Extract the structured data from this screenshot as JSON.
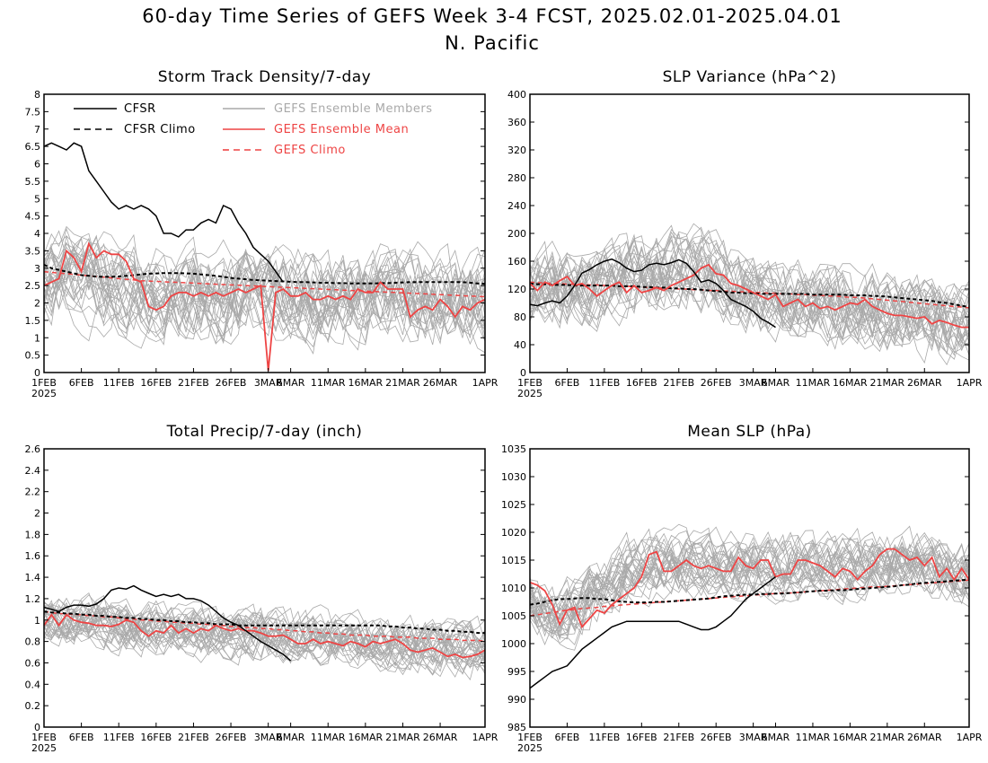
{
  "figure": {
    "title_line1": "60-day Time Series of GEFS Week 3-4 FCST, 2025.02.01-2025.04.01",
    "title_line2": "N. Pacific"
  },
  "colors": {
    "cfsr": "#000000",
    "members": "#a9a9a9",
    "gefs_mean": "#ee4444",
    "gefs_climo": "#ee4444"
  },
  "legend": {
    "cfsr": "CFSR",
    "cfsr_climo": "CFSR Climo",
    "members": "GEFS Ensemble Members",
    "gefs_mean": "GEFS Ensemble Mean",
    "gefs_climo": "GEFS Climo"
  },
  "x_tick_labels": [
    "1FEB",
    "6FEB",
    "11FEB",
    "16FEB",
    "21FEB",
    "26FEB",
    "3MAR",
    "6MAR",
    "11MAR",
    "16MAR",
    "21MAR",
    "26MAR",
    "1APR"
  ],
  "x_tick_days": [
    0,
    5,
    10,
    15,
    20,
    25,
    30,
    33,
    38,
    43,
    48,
    53,
    59
  ],
  "x_year_label": "2025",
  "chart_data": [
    {
      "type": "line",
      "title": "Storm Track Density/7-day",
      "x_domain": [
        0,
        59
      ],
      "ylim": [
        0,
        8
      ],
      "yticks": [
        "0",
        "0.5",
        "1",
        "1.5",
        "2",
        "2.5",
        "3",
        "3.5",
        "4",
        "4.5",
        "5",
        "5.5",
        "6",
        "6.5",
        "7",
        "7.5",
        "8"
      ],
      "ytick_values": [
        0,
        0.5,
        1,
        1.5,
        2,
        2.5,
        3,
        3.5,
        4,
        4.5,
        5,
        5.5,
        6,
        6.5,
        7,
        7.5,
        8
      ],
      "members_spread_note_free": true,
      "members_center": [
        2.5,
        2.6,
        2.7,
        2.9,
        2.8,
        2.7,
        2.6,
        2.6,
        2.5,
        2.5,
        2.4,
        2.4,
        2.4,
        2.3,
        2.3,
        2.3,
        2.2,
        2.2,
        2.2,
        2.2,
        2.2,
        2.2,
        2.2,
        2.2,
        2.2,
        2.2,
        2.2,
        2.3,
        2.3,
        2.3,
        2.3,
        2.3,
        2.3,
        2.3,
        2.3,
        2.3,
        2.2,
        2.2,
        2.2,
        2.3,
        2.3,
        2.3,
        2.3,
        2.3,
        2.3,
        2.3,
        2.3,
        2.3,
        2.2,
        2.2,
        2.2,
        2.2,
        2.1,
        2.1,
        2.1,
        2.1,
        2.1,
        2.1,
        2.1,
        2.1
      ],
      "members_range": 1.6,
      "cfsr": [
        6.5,
        6.6,
        6.5,
        6.4,
        6.6,
        6.5,
        5.8,
        5.5,
        5.2,
        4.9,
        4.7,
        4.8,
        4.7,
        4.8,
        4.7,
        4.5,
        4.0,
        4.0,
        3.9,
        4.1,
        4.1,
        4.3,
        4.4,
        4.3,
        4.8,
        4.7,
        4.3,
        4.0,
        3.6,
        3.4,
        3.2,
        2.9,
        2.6
      ],
      "cfsr_climo": [
        3.1,
        3.0,
        2.95,
        2.9,
        2.85,
        2.8,
        2.78,
        2.76,
        2.75,
        2.75,
        2.76,
        2.78,
        2.8,
        2.82,
        2.84,
        2.85,
        2.86,
        2.86,
        2.86,
        2.85,
        2.84,
        2.82,
        2.8,
        2.78,
        2.75,
        2.72,
        2.7,
        2.68,
        2.66,
        2.65,
        2.64,
        2.63,
        2.62,
        2.61,
        2.6,
        2.6,
        2.59,
        2.58,
        2.58,
        2.57,
        2.57,
        2.56,
        2.56,
        2.56,
        2.56,
        2.57,
        2.57,
        2.58,
        2.59,
        2.6,
        2.6,
        2.6,
        2.6,
        2.6,
        2.6,
        2.6,
        2.6,
        2.58,
        2.56,
        2.55
      ],
      "gefs_mean": [
        2.5,
        2.6,
        2.7,
        3.5,
        3.3,
        2.9,
        3.7,
        3.3,
        3.5,
        3.4,
        3.4,
        3.2,
        2.7,
        2.6,
        1.9,
        1.8,
        1.9,
        2.2,
        2.3,
        2.3,
        2.2,
        2.3,
        2.2,
        2.3,
        2.2,
        2.3,
        2.4,
        2.3,
        2.4,
        2.5,
        0.05,
        2.3,
        2.4,
        2.2,
        2.2,
        2.3,
        2.1,
        2.1,
        2.2,
        2.1,
        2.2,
        2.1,
        2.4,
        2.3,
        2.3,
        2.6,
        2.4,
        2.4,
        2.4,
        1.6,
        1.8,
        1.9,
        1.8,
        2.1,
        1.9,
        1.6,
        1.9,
        1.8,
        2.0,
        2.1
      ],
      "gefs_climo": [
        2.9,
        2.88,
        2.86,
        2.84,
        2.82,
        2.8,
        2.78,
        2.76,
        2.74,
        2.72,
        2.7,
        2.68,
        2.66,
        2.64,
        2.63,
        2.62,
        2.61,
        2.6,
        2.59,
        2.58,
        2.57,
        2.56,
        2.55,
        2.54,
        2.53,
        2.52,
        2.51,
        2.5,
        2.49,
        2.48,
        2.47,
        2.46,
        2.45,
        2.44,
        2.43,
        2.42,
        2.41,
        2.4,
        2.39,
        2.38,
        2.37,
        2.36,
        2.35,
        2.34,
        2.33,
        2.32,
        2.31,
        2.3,
        2.29,
        2.28,
        2.27,
        2.26,
        2.25,
        2.24,
        2.23,
        2.22,
        2.21,
        2.2,
        2.19,
        2.18
      ]
    },
    {
      "type": "line",
      "title": "SLP Variance (hPa^2)",
      "x_domain": [
        0,
        59
      ],
      "ylim": [
        0,
        400
      ],
      "yticks": [
        "0",
        "40",
        "80",
        "120",
        "160",
        "200",
        "240",
        "280",
        "320",
        "360",
        "400"
      ],
      "ytick_values": [
        0,
        40,
        80,
        120,
        160,
        200,
        240,
        280,
        320,
        360,
        400
      ],
      "members_center": [
        115,
        118,
        120,
        122,
        120,
        118,
        118,
        120,
        125,
        128,
        130,
        132,
        135,
        135,
        138,
        140,
        140,
        142,
        145,
        148,
        150,
        150,
        148,
        145,
        140,
        135,
        130,
        125,
        120,
        115,
        110,
        108,
        106,
        104,
        102,
        100,
        100,
        98,
        96,
        95,
        95,
        94,
        94,
        93,
        92,
        92,
        90,
        88,
        86,
        84,
        82,
        80,
        78,
        76,
        75,
        74,
        72,
        72,
        70,
        70
      ],
      "members_range": 70,
      "cfsr": [
        98,
        96,
        100,
        103,
        100,
        110,
        125,
        143,
        148,
        155,
        160,
        163,
        158,
        150,
        145,
        147,
        155,
        157,
        155,
        158,
        162,
        157,
        145,
        130,
        133,
        128,
        118,
        105,
        100,
        95,
        88,
        78,
        72,
        65
      ],
      "cfsr_climo": [
        128,
        127,
        127,
        126,
        126,
        126,
        125,
        125,
        125,
        125,
        125,
        125,
        124,
        124,
        124,
        123,
        123,
        122,
        122,
        121,
        121,
        120,
        120,
        119,
        118,
        117,
        116,
        115,
        115,
        114,
        114,
        113,
        113,
        113,
        113,
        113,
        113,
        113,
        112,
        112,
        112,
        112,
        112,
        111,
        111,
        111,
        110,
        110,
        109,
        108,
        107,
        106,
        105,
        104,
        103,
        101,
        100,
        98,
        96,
        94
      ],
      "gefs_mean": [
        128,
        118,
        130,
        125,
        132,
        138,
        125,
        128,
        120,
        110,
        118,
        125,
        130,
        115,
        125,
        115,
        118,
        122,
        118,
        125,
        130,
        135,
        140,
        150,
        155,
        142,
        140,
        128,
        125,
        120,
        115,
        110,
        105,
        112,
        95,
        100,
        105,
        95,
        100,
        92,
        95,
        90,
        95,
        100,
        98,
        105,
        95,
        90,
        85,
        82,
        82,
        80,
        78,
        80,
        70,
        75,
        72,
        68,
        65,
        65
      ],
      "gefs_climo": [
        130,
        129,
        129,
        128,
        128,
        127,
        127,
        126,
        126,
        126,
        125,
        125,
        124,
        124,
        123,
        123,
        122,
        122,
        121,
        121,
        120,
        120,
        119,
        119,
        118,
        118,
        117,
        117,
        116,
        116,
        115,
        115,
        114,
        114,
        113,
        113,
        112,
        112,
        111,
        111,
        110,
        110,
        109,
        108,
        108,
        107,
        106,
        105,
        104,
        103,
        102,
        101,
        100,
        99,
        98,
        97,
        96,
        95,
        94,
        93
      ]
    },
    {
      "type": "line",
      "title": "Total Precip/7-day (inch)",
      "x_domain": [
        0,
        59
      ],
      "ylim": [
        0,
        2.6
      ],
      "yticks": [
        "0",
        "0.2",
        "0.4",
        "0.6",
        "0.8",
        "1",
        "1.2",
        "1.4",
        "1.6",
        "1.8",
        "2",
        "2.2",
        "2.4",
        "2.6"
      ],
      "ytick_values": [
        0,
        0.2,
        0.4,
        0.6,
        0.8,
        1,
        1.2,
        1.4,
        1.6,
        1.8,
        2,
        2.2,
        2.4,
        2.6
      ],
      "members_center": [
        1.0,
        1.0,
        1.0,
        1.0,
        1.0,
        1.0,
        0.98,
        0.97,
        0.96,
        0.95,
        0.95,
        0.95,
        0.94,
        0.94,
        0.93,
        0.93,
        0.92,
        0.92,
        0.92,
        0.91,
        0.91,
        0.9,
        0.9,
        0.9,
        0.89,
        0.89,
        0.88,
        0.88,
        0.87,
        0.87,
        0.86,
        0.86,
        0.85,
        0.85,
        0.84,
        0.84,
        0.83,
        0.83,
        0.82,
        0.82,
        0.81,
        0.81,
        0.8,
        0.8,
        0.79,
        0.79,
        0.78,
        0.78,
        0.77,
        0.77,
        0.76,
        0.76,
        0.75,
        0.75,
        0.74,
        0.74,
        0.73,
        0.73,
        0.72,
        0.72
      ],
      "members_range": 0.3,
      "cfsr": [
        1.12,
        1.1,
        1.08,
        1.12,
        1.14,
        1.14,
        1.13,
        1.15,
        1.2,
        1.28,
        1.3,
        1.29,
        1.32,
        1.28,
        1.25,
        1.22,
        1.24,
        1.22,
        1.24,
        1.2,
        1.2,
        1.18,
        1.14,
        1.08,
        1.02,
        0.98,
        0.95,
        0.9,
        0.85,
        0.8,
        0.76,
        0.72,
        0.68,
        0.62
      ],
      "cfsr_climo": [
        1.08,
        1.07,
        1.07,
        1.06,
        1.06,
        1.05,
        1.05,
        1.04,
        1.04,
        1.03,
        1.03,
        1.02,
        1.02,
        1.01,
        1.01,
        1.0,
        1.0,
        0.99,
        0.99,
        0.98,
        0.98,
        0.97,
        0.97,
        0.96,
        0.96,
        0.96,
        0.95,
        0.95,
        0.95,
        0.95,
        0.95,
        0.95,
        0.95,
        0.95,
        0.95,
        0.95,
        0.95,
        0.95,
        0.95,
        0.95,
        0.95,
        0.95,
        0.95,
        0.95,
        0.95,
        0.95,
        0.94,
        0.94,
        0.93,
        0.93,
        0.92,
        0.92,
        0.91,
        0.91,
        0.9,
        0.9,
        0.89,
        0.89,
        0.88,
        0.88
      ],
      "gefs_mean": [
        0.95,
        1.05,
        0.95,
        1.05,
        1.0,
        0.98,
        0.97,
        0.95,
        0.95,
        0.94,
        0.96,
        1.0,
        0.98,
        0.9,
        0.85,
        0.9,
        0.88,
        0.95,
        0.88,
        0.92,
        0.88,
        0.92,
        0.9,
        0.95,
        0.92,
        0.9,
        0.92,
        0.9,
        0.9,
        0.88,
        0.85,
        0.85,
        0.86,
        0.82,
        0.78,
        0.78,
        0.82,
        0.78,
        0.8,
        0.78,
        0.76,
        0.8,
        0.78,
        0.75,
        0.8,
        0.78,
        0.8,
        0.82,
        0.78,
        0.72,
        0.7,
        0.72,
        0.74,
        0.7,
        0.66,
        0.68,
        0.65,
        0.66,
        0.68,
        0.72
      ],
      "gefs_climo": [
        1.08,
        1.07,
        1.06,
        1.06,
        1.05,
        1.05,
        1.04,
        1.04,
        1.03,
        1.03,
        1.02,
        1.01,
        1.01,
        1.0,
        1.0,
        0.99,
        0.99,
        0.98,
        0.98,
        0.97,
        0.97,
        0.96,
        0.96,
        0.95,
        0.95,
        0.94,
        0.94,
        0.93,
        0.93,
        0.92,
        0.92,
        0.91,
        0.91,
        0.9,
        0.9,
        0.89,
        0.89,
        0.88,
        0.88,
        0.87,
        0.87,
        0.86,
        0.86,
        0.86,
        0.85,
        0.85,
        0.85,
        0.84,
        0.84,
        0.84,
        0.83,
        0.83,
        0.83,
        0.82,
        0.82,
        0.82,
        0.81,
        0.81,
        0.81,
        0.8
      ]
    },
    {
      "type": "line",
      "title": "Mean SLP (hPa)",
      "x_domain": [
        0,
        59
      ],
      "ylim": [
        985,
        1035
      ],
      "yticks": [
        "985",
        "990",
        "995",
        "1000",
        "1005",
        "1010",
        "1015",
        "1020",
        "1025",
        "1030",
        "1035"
      ],
      "ytick_values": [
        985,
        990,
        995,
        1000,
        1005,
        1010,
        1015,
        1020,
        1025,
        1030,
        1035
      ],
      "members_center": [
        1008,
        1007,
        1006,
        1005,
        1005,
        1006,
        1006,
        1007,
        1008,
        1009,
        1010,
        1011,
        1012,
        1013,
        1013,
        1014,
        1014,
        1014,
        1014,
        1014,
        1014,
        1014,
        1014,
        1014,
        1014,
        1014,
        1014,
        1014,
        1014,
        1014,
        1014,
        1014,
        1014,
        1014,
        1014,
        1014,
        1014,
        1014,
        1014,
        1014,
        1014,
        1014,
        1014,
        1014,
        1014,
        1014,
        1014,
        1014,
        1015,
        1015,
        1015,
        1015,
        1015,
        1014,
        1014,
        1014,
        1014,
        1013,
        1013,
        1013
      ],
      "members_range": 7,
      "cfsr": [
        992,
        993,
        994,
        995,
        995.5,
        996,
        997.5,
        999,
        1000,
        1001,
        1002,
        1003,
        1003.5,
        1004,
        1004,
        1004,
        1004,
        1004,
        1004,
        1004,
        1004,
        1003.5,
        1003,
        1002.5,
        1002.5,
        1003,
        1004,
        1005,
        1006.5,
        1008,
        1009,
        1010,
        1011,
        1012
      ],
      "cfsr_climo": [
        1007,
        1007.2,
        1007.5,
        1007.8,
        1008,
        1008,
        1008.1,
        1008.2,
        1008.2,
        1008,
        1008,
        1007.8,
        1007.6,
        1007.5,
        1007.4,
        1007.4,
        1007.4,
        1007.5,
        1007.5,
        1007.6,
        1007.7,
        1007.8,
        1007.9,
        1008,
        1008.1,
        1008.3,
        1008.5,
        1008.6,
        1008.7,
        1008.8,
        1008.8,
        1008.9,
        1008.9,
        1009,
        1009,
        1009.1,
        1009.2,
        1009.3,
        1009.4,
        1009.5,
        1009.5,
        1009.6,
        1009.6,
        1009.7,
        1009.8,
        1009.9,
        1010,
        1010.1,
        1010.2,
        1010.3,
        1010.5,
        1010.6,
        1010.8,
        1010.9,
        1011,
        1011.1,
        1011.2,
        1011.3,
        1011.4,
        1011.5
      ],
      "gefs_mean": [
        1011,
        1010.5,
        1009.5,
        1007,
        1003.5,
        1006,
        1006.5,
        1003,
        1004.5,
        1006,
        1005.5,
        1007,
        1008,
        1009,
        1010,
        1012,
        1016,
        1016.5,
        1013,
        1013,
        1014,
        1015,
        1014,
        1013.5,
        1014,
        1013.5,
        1013,
        1013,
        1015.5,
        1014,
        1013.5,
        1015,
        1015,
        1012,
        1012.5,
        1012.5,
        1015,
        1015,
        1014.5,
        1014,
        1013,
        1012,
        1013.5,
        1013,
        1011.5,
        1013,
        1014,
        1016,
        1017,
        1017,
        1016,
        1015,
        1015.5,
        1014,
        1015.5,
        1012,
        1013.5,
        1011.5,
        1013.5,
        1011.5
      ],
      "gefs_climo": [
        1005,
        1005.2,
        1005.4,
        1005.6,
        1005.8,
        1006,
        1006.1,
        1006.3,
        1006.4,
        1006.5,
        1006.7,
        1006.8,
        1006.9,
        1007,
        1007.1,
        1007.2,
        1007.3,
        1007.4,
        1007.5,
        1007.6,
        1007.7,
        1007.8,
        1007.9,
        1008,
        1008.1,
        1008.2,
        1008.3,
        1008.4,
        1008.5,
        1008.6,
        1008.7,
        1008.8,
        1008.9,
        1009,
        1009.1,
        1009.1,
        1009.2,
        1009.3,
        1009.4,
        1009.5,
        1009.6,
        1009.7,
        1009.8,
        1009.9,
        1010,
        1010.1,
        1010.2,
        1010.2,
        1010.3,
        1010.4,
        1010.5,
        1010.6,
        1010.7,
        1010.8,
        1010.9,
        1011,
        1011.1,
        1011.2,
        1011.3,
        1011.4
      ]
    }
  ]
}
